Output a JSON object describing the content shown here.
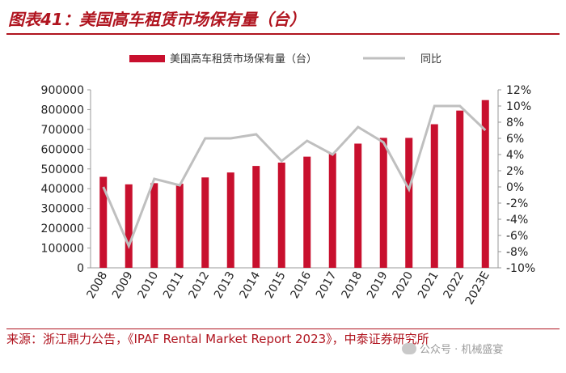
{
  "figure": {
    "title": "图表41：美国高车租赁市场保有量（台）",
    "source": "来源：浙江鼎力公告，《IPAF Rental Market Report 2023》，中泰证券研究所",
    "watermark": "公众号 · 机械盛宴"
  },
  "colors": {
    "accent": "#b0141f",
    "bar": "#c8102e",
    "line": "#bfbfbf",
    "axis": "#999999"
  },
  "chart_data": {
    "type": "bar",
    "title": "美国高车租赁市场保有量（台）",
    "categories": [
      "2008",
      "2009",
      "2010",
      "2011",
      "2012",
      "2013",
      "2014",
      "2015",
      "2016",
      "2017",
      "2018",
      "2019",
      "2020",
      "2021",
      "2022",
      "2023E"
    ],
    "series": [
      {
        "name": "美国高车租赁市场保有量（台）",
        "type": "bar",
        "axis": "left",
        "values": [
          460000,
          422000,
          428000,
          425000,
          457000,
          482000,
          515000,
          532000,
          562000,
          580000,
          628000,
          657000,
          657000,
          726000,
          795000,
          848000
        ]
      },
      {
        "name": "同比",
        "type": "line",
        "axis": "right",
        "unit": "%",
        "values": [
          0.0,
          -7.3,
          1.0,
          0.2,
          6.0,
          6.0,
          6.5,
          3.2,
          5.7,
          4.0,
          7.4,
          5.5,
          -0.3,
          10.0,
          10.0,
          7.0
        ]
      }
    ],
    "left_axis": {
      "ylim": [
        0,
        900000
      ],
      "ticks": [
        "0",
        "100000",
        "200000",
        "300000",
        "400000",
        "500000",
        "600000",
        "700000",
        "800000",
        "900000"
      ]
    },
    "right_axis": {
      "ylim": [
        -10,
        12
      ],
      "ticks": [
        "-10%",
        "-8%",
        "-6%",
        "-4%",
        "-2%",
        "0%",
        "2%",
        "4%",
        "6%",
        "8%",
        "10%",
        "12%"
      ]
    },
    "legend": {
      "bar_label": "美国高车租赁市场保有量（台）",
      "line_label": "同比",
      "placement": "top"
    },
    "grid": false
  }
}
